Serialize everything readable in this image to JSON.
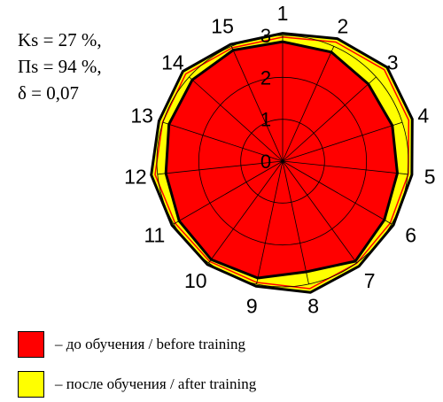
{
  "stats": {
    "ks": "Ks = 27 %,",
    "ps": "Пs = 94 %,",
    "delta": "δ = 0,07"
  },
  "chart_data": {
    "type": "radar",
    "categories": [
      "1",
      "2",
      "3",
      "4",
      "5",
      "6",
      "7",
      "8",
      "9",
      "10",
      "11",
      "12",
      "13",
      "14",
      "15"
    ],
    "radial_ticks": [
      "0",
      "1",
      "2",
      "3"
    ],
    "rmax": 3,
    "grid": true,
    "series": [
      {
        "name": "– после обучения / after training",
        "color": "#ffff00",
        "values": [
          3.05,
          3.2,
          3.35,
          3.25,
          3.1,
          3.05,
          3.1,
          3.2,
          3.05,
          3.05,
          3.05,
          3.15,
          3.1,
          3.2,
          3.05
        ]
      },
      {
        "name": "– до обучения / before training",
        "color": "#ff0000",
        "values": [
          2.85,
          2.85,
          2.75,
          2.75,
          2.75,
          2.8,
          2.95,
          2.7,
          2.85,
          2.9,
          2.85,
          2.8,
          2.85,
          2.9,
          2.9
        ]
      }
    ],
    "legend_position": "bottom-left"
  }
}
